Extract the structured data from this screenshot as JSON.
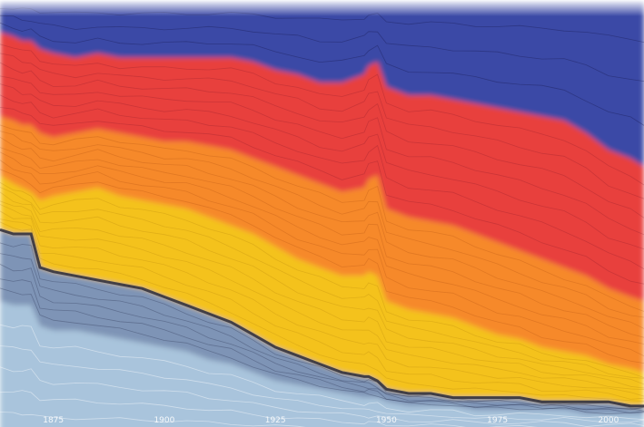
{
  "chart_data": {
    "type": "area",
    "title": "",
    "xlabel": "",
    "ylabel": "",
    "x_ticks": [
      "1875",
      "1900",
      "1925",
      "1950",
      "1975",
      "2000"
    ],
    "xlim": [
      1863,
      2008
    ],
    "ylim": [
      0,
      1
    ],
    "grid": false,
    "legend": "none",
    "colors": {
      "top_band": "#3b4aa6",
      "red": "#e8413c",
      "orange": "#f6892b",
      "yellow": "#f4c21a",
      "dark_line": "#2c2c3a",
      "gray_blue": "#7e94b6",
      "light_blue": "#a9c4dc"
    },
    "boundaries": {
      "x": [
        1863,
        1866,
        1868,
        1870,
        1872,
        1875,
        1880,
        1885,
        1890,
        1895,
        1900,
        1905,
        1910,
        1915,
        1920,
        1925,
        1930,
        1935,
        1940,
        1945,
        1946,
        1948,
        1950,
        1955,
        1960,
        1965,
        1970,
        1975,
        1980,
        1985,
        1990,
        1995,
        2000,
        2005,
        2008
      ],
      "upper_purple": [
        0.94,
        0.93,
        0.92,
        0.92,
        0.9,
        0.89,
        0.88,
        0.89,
        0.88,
        0.88,
        0.88,
        0.88,
        0.88,
        0.88,
        0.87,
        0.85,
        0.84,
        0.82,
        0.82,
        0.84,
        0.86,
        0.87,
        0.81,
        0.79,
        0.79,
        0.78,
        0.77,
        0.76,
        0.75,
        0.74,
        0.73,
        0.7,
        0.66,
        0.64,
        0.62
      ],
      "red_to_orange": [
        0.74,
        0.73,
        0.72,
        0.72,
        0.7,
        0.69,
        0.7,
        0.71,
        0.7,
        0.69,
        0.68,
        0.68,
        0.67,
        0.66,
        0.64,
        0.62,
        0.6,
        0.58,
        0.56,
        0.57,
        0.59,
        0.6,
        0.52,
        0.5,
        0.49,
        0.48,
        0.46,
        0.44,
        0.42,
        0.4,
        0.38,
        0.36,
        0.33,
        0.31,
        0.3
      ],
      "orange_to_yellow": [
        0.6,
        0.58,
        0.57,
        0.56,
        0.54,
        0.55,
        0.56,
        0.57,
        0.55,
        0.54,
        0.53,
        0.52,
        0.5,
        0.48,
        0.46,
        0.43,
        0.4,
        0.38,
        0.36,
        0.36,
        0.37,
        0.36,
        0.3,
        0.28,
        0.27,
        0.26,
        0.24,
        0.22,
        0.21,
        0.19,
        0.18,
        0.17,
        0.15,
        0.14,
        0.13
      ],
      "dark_line": [
        0.47,
        0.46,
        0.46,
        0.46,
        0.38,
        0.37,
        0.36,
        0.35,
        0.34,
        0.33,
        0.31,
        0.29,
        0.27,
        0.25,
        0.22,
        0.19,
        0.17,
        0.15,
        0.13,
        0.12,
        0.12,
        0.11,
        0.09,
        0.08,
        0.08,
        0.07,
        0.07,
        0.07,
        0.07,
        0.06,
        0.06,
        0.06,
        0.06,
        0.05,
        0.05
      ],
      "gray_to_light": [
        0.3,
        0.29,
        0.29,
        0.29,
        0.24,
        0.23,
        0.23,
        0.22,
        0.21,
        0.2,
        0.19,
        0.18,
        0.16,
        0.15,
        0.13,
        0.11,
        0.1,
        0.09,
        0.08,
        0.07,
        0.07,
        0.07,
        0.06,
        0.05,
        0.05,
        0.05,
        0.04,
        0.04,
        0.04,
        0.04,
        0.04,
        0.03,
        0.03,
        0.03,
        0.03
      ]
    }
  }
}
